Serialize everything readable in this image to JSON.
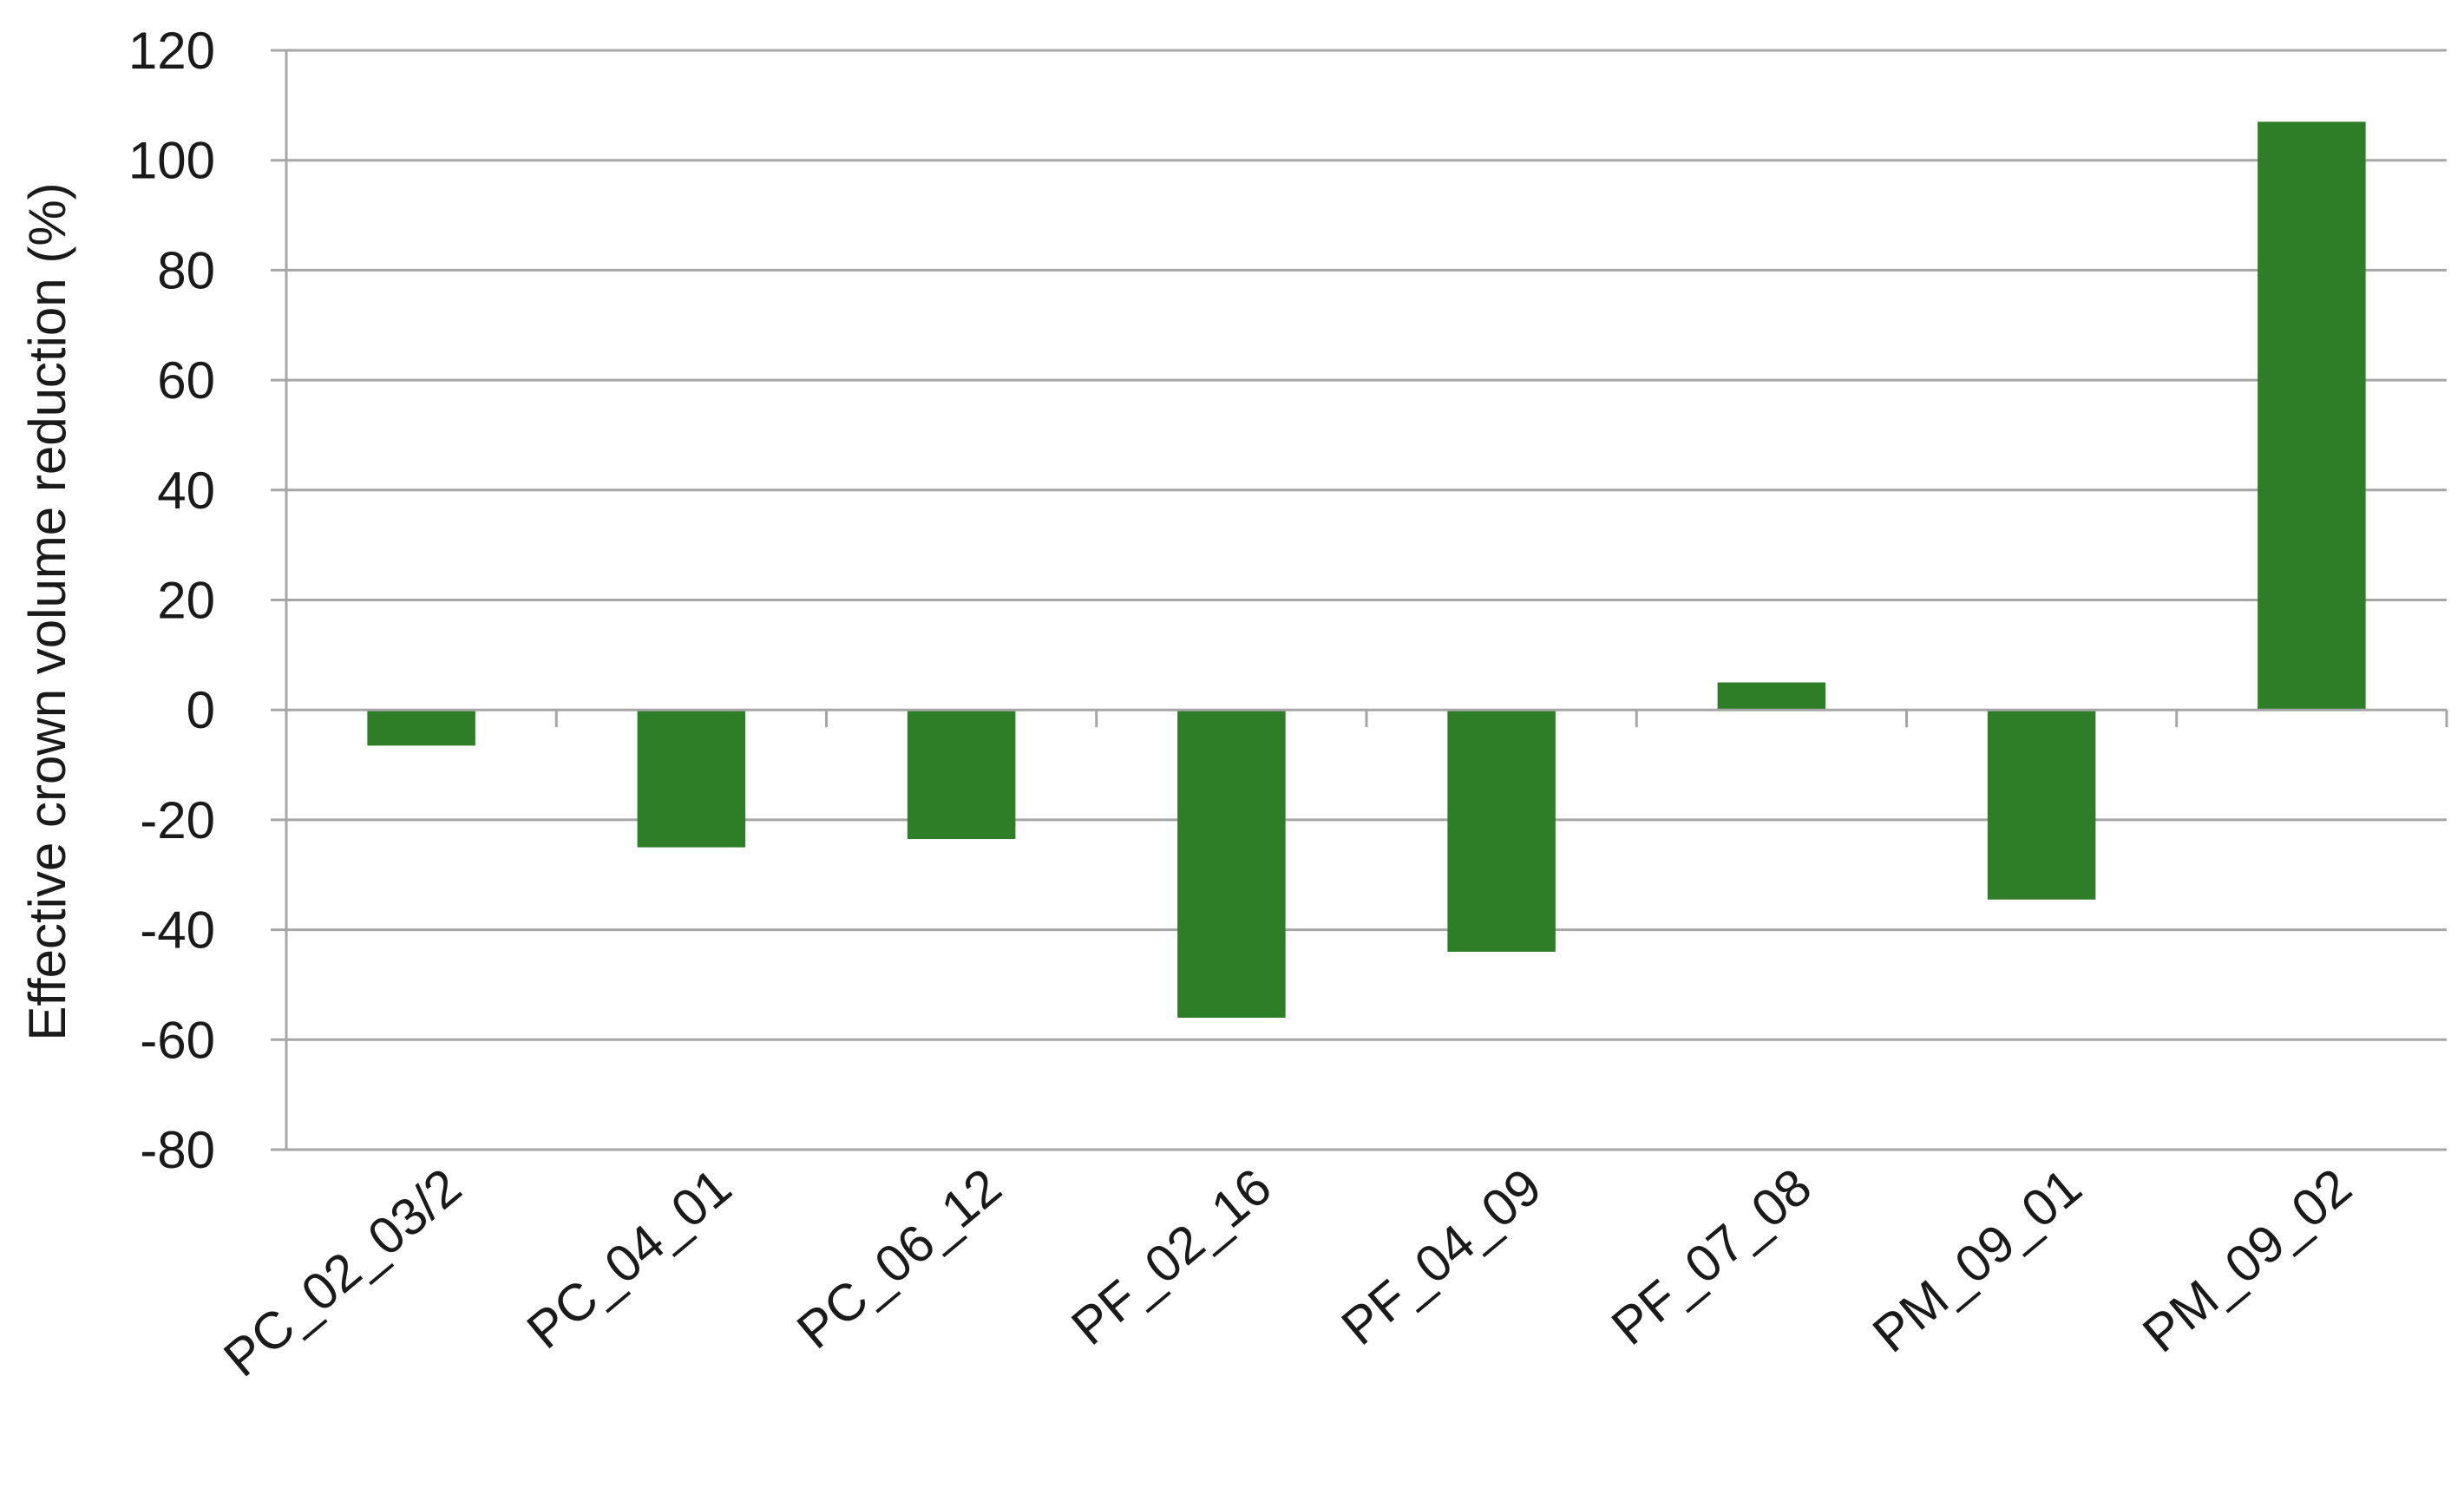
{
  "chart_data": {
    "type": "bar",
    "title": "",
    "xlabel": "",
    "ylabel": "Effective crown volume reduction (%)",
    "categories": [
      "PC_02_03/2",
      "PC_04_01",
      "PC_06_12",
      "PF_02_16",
      "PF_04_09",
      "PF_07_08",
      "PM_09_01",
      "PM_09_02"
    ],
    "values": [
      -6.5,
      -25,
      -23.5,
      -56,
      -44,
      5,
      -34.5,
      107
    ],
    "ylim": [
      -80,
      120
    ],
    "yticks": [
      -80,
      -60,
      -40,
      -20,
      0,
      20,
      40,
      60,
      80,
      100,
      120
    ],
    "grid": true,
    "legend": "none",
    "colors": {
      "bar": "#2e7d27",
      "grid": "#a6a6a6",
      "axis": "#a6a6a6"
    }
  }
}
